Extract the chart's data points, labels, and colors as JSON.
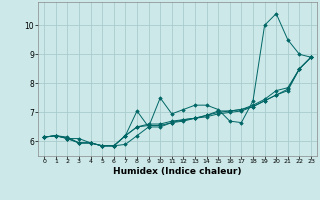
{
  "title": "",
  "xlabel": "Humidex (Indice chaleur)",
  "ylabel": "",
  "background_color": "#cce8e8",
  "grid_color": "#aacccc",
  "line_color": "#006666",
  "xlim": [
    -0.5,
    23.5
  ],
  "ylim": [
    5.5,
    10.8
  ],
  "xticks": [
    0,
    1,
    2,
    3,
    4,
    5,
    6,
    7,
    8,
    9,
    10,
    11,
    12,
    13,
    14,
    15,
    16,
    17,
    18,
    19,
    20,
    21,
    22,
    23
  ],
  "yticks": [
    6,
    7,
    8,
    9,
    10
  ],
  "series": [
    {
      "x": [
        0,
        1,
        2,
        3,
        4,
        5,
        6,
        7,
        8,
        9,
        10,
        11,
        12,
        13,
        14,
        15,
        16,
        17,
        18,
        19,
        20,
        21,
        22,
        23
      ],
      "y": [
        6.15,
        6.2,
        6.15,
        5.95,
        5.95,
        5.85,
        5.85,
        6.2,
        7.05,
        6.5,
        7.5,
        6.95,
        7.1,
        7.25,
        7.25,
        7.1,
        6.7,
        6.65,
        7.4,
        10.0,
        10.4,
        9.5,
        9.0,
        8.9
      ]
    },
    {
      "x": [
        0,
        1,
        2,
        3,
        4,
        5,
        6,
        7,
        8,
        9,
        10,
        11,
        12,
        13,
        14,
        15,
        16,
        17,
        18,
        19,
        20,
        21,
        22,
        23
      ],
      "y": [
        6.15,
        6.2,
        6.1,
        6.1,
        5.95,
        5.85,
        5.85,
        6.2,
        6.5,
        6.6,
        6.6,
        6.7,
        6.75,
        6.8,
        6.9,
        7.0,
        7.05,
        7.1,
        7.2,
        7.4,
        7.6,
        7.8,
        8.5,
        8.9
      ]
    },
    {
      "x": [
        0,
        1,
        2,
        3,
        4,
        5,
        6,
        7,
        8,
        9,
        10,
        11,
        12,
        13,
        14,
        15,
        16,
        17,
        18,
        19,
        20,
        21,
        22,
        23
      ],
      "y": [
        6.15,
        6.2,
        6.1,
        5.95,
        5.95,
        5.85,
        5.85,
        5.9,
        6.2,
        6.5,
        6.5,
        6.65,
        6.75,
        6.8,
        6.9,
        7.05,
        7.05,
        7.1,
        7.25,
        7.45,
        7.75,
        7.85,
        8.5,
        8.9
      ]
    },
    {
      "x": [
        0,
        1,
        2,
        3,
        4,
        5,
        6,
        7,
        8,
        9,
        10,
        11,
        12,
        13,
        14,
        15,
        16,
        17,
        18,
        19,
        20,
        21,
        22,
        23
      ],
      "y": [
        6.15,
        6.2,
        6.1,
        5.95,
        5.95,
        5.85,
        5.85,
        6.2,
        6.5,
        6.55,
        6.55,
        6.65,
        6.7,
        6.8,
        6.85,
        6.95,
        7.0,
        7.05,
        7.2,
        7.4,
        7.6,
        7.75,
        8.5,
        8.9
      ]
    }
  ]
}
